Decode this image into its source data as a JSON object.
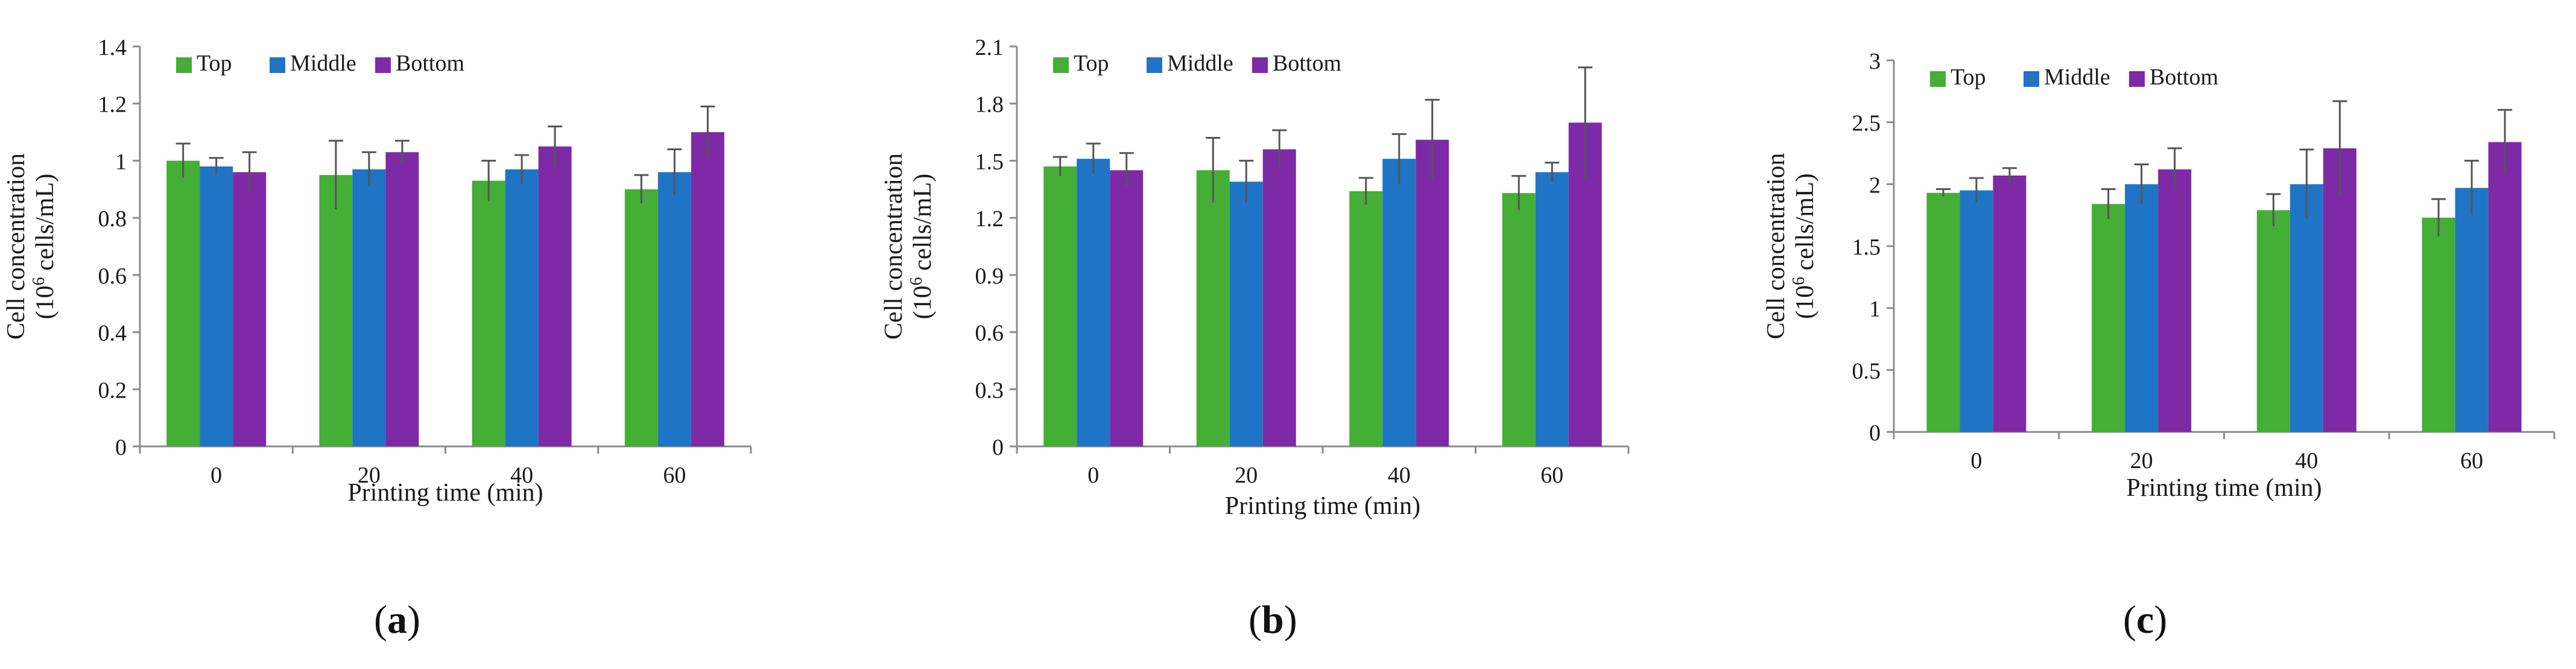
{
  "colors": {
    "top": "#44AE36",
    "middle": "#1F74C6",
    "bottom": "#7E2AA6",
    "axis": "#8c8c8c",
    "error": "#555555"
  },
  "panels": [
    {
      "label": "a"
    },
    {
      "label": "b"
    },
    {
      "label": "c"
    }
  ],
  "chart_data": [
    {
      "type": "bar",
      "panel": "a",
      "categories": [
        "0",
        "20",
        "40",
        "60"
      ],
      "series": [
        {
          "name": "Top",
          "values": [
            1.0,
            0.95,
            0.93,
            0.9
          ],
          "errors": [
            0.06,
            0.12,
            0.07,
            0.05
          ]
        },
        {
          "name": "Middle",
          "values": [
            0.98,
            0.97,
            0.97,
            0.96
          ],
          "errors": [
            0.03,
            0.06,
            0.05,
            0.08
          ]
        },
        {
          "name": "Bottom",
          "values": [
            0.96,
            1.03,
            1.05,
            1.1
          ],
          "errors": [
            0.07,
            0.04,
            0.07,
            0.09
          ]
        }
      ],
      "xlabel": "Printing time (min)",
      "ylabel_line1": "Cell concentration",
      "ylabel_line2_pre": "(10",
      "ylabel_sup": "6",
      "ylabel_line2_post": " cells/mL)",
      "ylim": [
        0,
        1.4
      ],
      "yticks": [
        0,
        0.2,
        0.4,
        0.6,
        0.8,
        1,
        1.2,
        1.4
      ],
      "ytick_labels": [
        "0",
        "0.2",
        "0.4",
        "0.6",
        "0.8",
        "1",
        "1.2",
        "1.4"
      ],
      "legend": "top-left"
    },
    {
      "type": "bar",
      "panel": "b",
      "categories": [
        "0",
        "20",
        "40",
        "60"
      ],
      "series": [
        {
          "name": "Top",
          "values": [
            1.47,
            1.45,
            1.34,
            1.33
          ],
          "errors": [
            0.05,
            0.17,
            0.07,
            0.09
          ]
        },
        {
          "name": "Middle",
          "values": [
            1.51,
            1.39,
            1.51,
            1.44
          ],
          "errors": [
            0.08,
            0.11,
            0.13,
            0.05
          ]
        },
        {
          "name": "Bottom",
          "values": [
            1.45,
            1.56,
            1.61,
            1.7
          ],
          "errors": [
            0.09,
            0.1,
            0.21,
            0.29
          ]
        }
      ],
      "xlabel": "Printing time (min)",
      "ylabel_line1": "Cell concentration",
      "ylabel_line2_pre": "(10",
      "ylabel_sup": "6",
      "ylabel_line2_post": " cells/mL)",
      "ylim": [
        0,
        2.1
      ],
      "yticks": [
        0,
        0.3,
        0.6,
        0.9,
        1.2,
        1.5,
        1.8,
        2.1
      ],
      "ytick_labels": [
        "0",
        "0.3",
        "0.6",
        "0.9",
        "1.2",
        "1.5",
        "1.8",
        "2.1"
      ],
      "legend": "top-left"
    },
    {
      "type": "bar",
      "panel": "c",
      "categories": [
        "0",
        "20",
        "40",
        "60"
      ],
      "series": [
        {
          "name": "Top",
          "values": [
            1.93,
            1.84,
            1.79,
            1.73
          ],
          "errors": [
            0.03,
            0.12,
            0.13,
            0.15
          ]
        },
        {
          "name": "Middle",
          "values": [
            1.95,
            2.0,
            2.0,
            1.97
          ],
          "errors": [
            0.1,
            0.16,
            0.28,
            0.22
          ]
        },
        {
          "name": "Bottom",
          "values": [
            2.07,
            2.12,
            2.29,
            2.34
          ],
          "errors": [
            0.06,
            0.17,
            0.38,
            0.26
          ]
        }
      ],
      "xlabel": "Printing time (min)",
      "ylabel_line1": "Cell concentration",
      "ylabel_line2_pre": "(10",
      "ylabel_sup": "6",
      "ylabel_line2_post": " cells/mL)",
      "ylim": [
        0,
        3
      ],
      "yticks": [
        0,
        0.5,
        1,
        1.5,
        2,
        2.5,
        3
      ],
      "ytick_labels": [
        "0",
        "0.5",
        "1",
        "1.5",
        "2",
        "2.5",
        "3"
      ],
      "legend": "top-left"
    }
  ]
}
